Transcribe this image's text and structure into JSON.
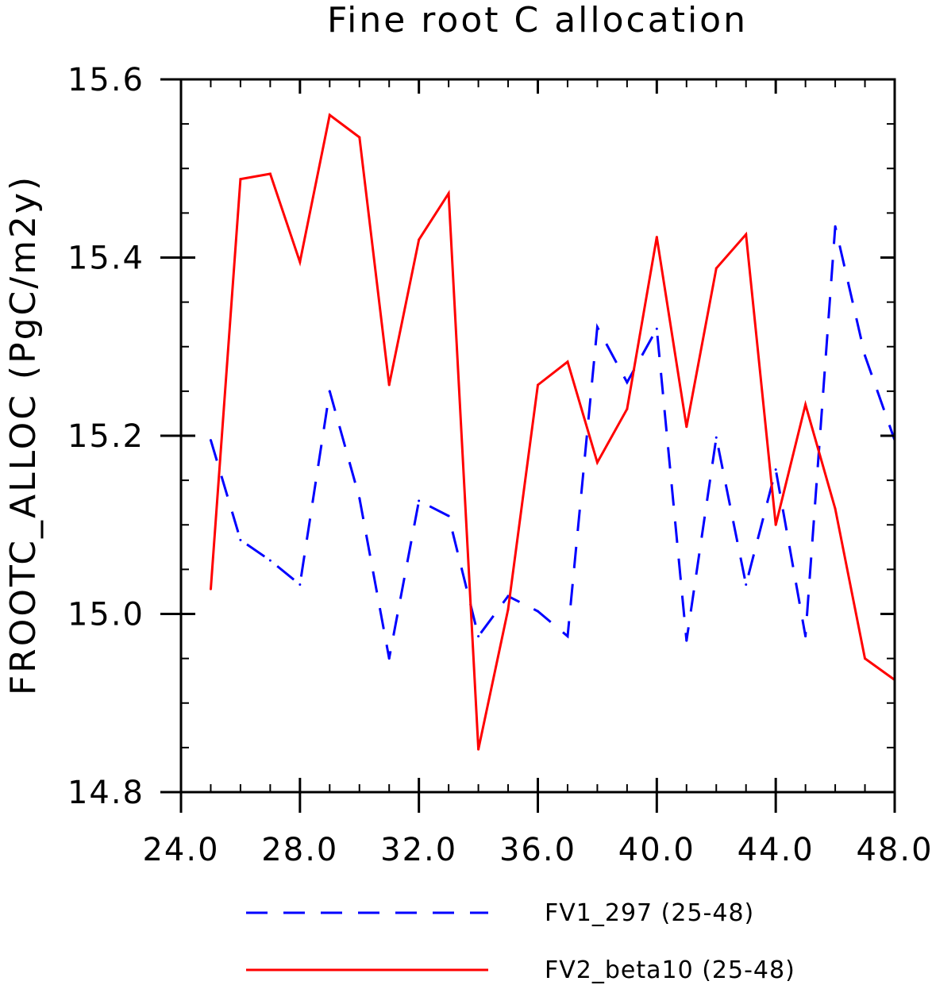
{
  "chart_data": {
    "type": "line",
    "title": "Fine root C allocation",
    "xlabel": "",
    "ylabel": "FROOTC_ALLOC  (PgC/m2y)",
    "xlim": [
      24.0,
      48.0
    ],
    "ylim": [
      14.8,
      15.6
    ],
    "x_ticks": [
      "24.0",
      "28.0",
      "32.0",
      "36.0",
      "40.0",
      "44.0",
      "48.0"
    ],
    "y_ticks": [
      "14.8",
      "15.0",
      "15.2",
      "15.4",
      "15.6"
    ],
    "x": [
      25,
      26,
      27,
      28,
      29,
      30,
      31,
      32,
      33,
      34,
      35,
      36,
      37,
      38,
      39,
      40,
      41,
      42,
      43,
      44,
      45,
      46,
      47,
      48
    ],
    "series": [
      {
        "name": "FV1_297 (25-48)",
        "color": "#0000ff",
        "style": "dashed",
        "values": [
          15.195,
          15.083,
          15.06,
          15.033,
          15.25,
          15.13,
          14.95,
          15.127,
          15.11,
          14.975,
          15.02,
          15.003,
          14.975,
          15.322,
          15.26,
          15.32,
          14.97,
          15.198,
          15.033,
          15.162,
          14.975,
          15.435,
          15.29,
          15.195
        ]
      },
      {
        "name": "FV2_beta10 (25-48)",
        "color": "#ff0000",
        "style": "solid",
        "values": [
          15.028,
          15.488,
          15.494,
          15.395,
          15.56,
          15.535,
          15.257,
          15.42,
          15.472,
          14.848,
          15.005,
          15.257,
          15.283,
          15.17,
          15.23,
          15.423,
          15.21,
          15.388,
          15.426,
          15.1,
          15.235,
          15.118,
          14.95,
          14.926
        ]
      }
    ],
    "grid": false,
    "legend_position": "bottom"
  }
}
